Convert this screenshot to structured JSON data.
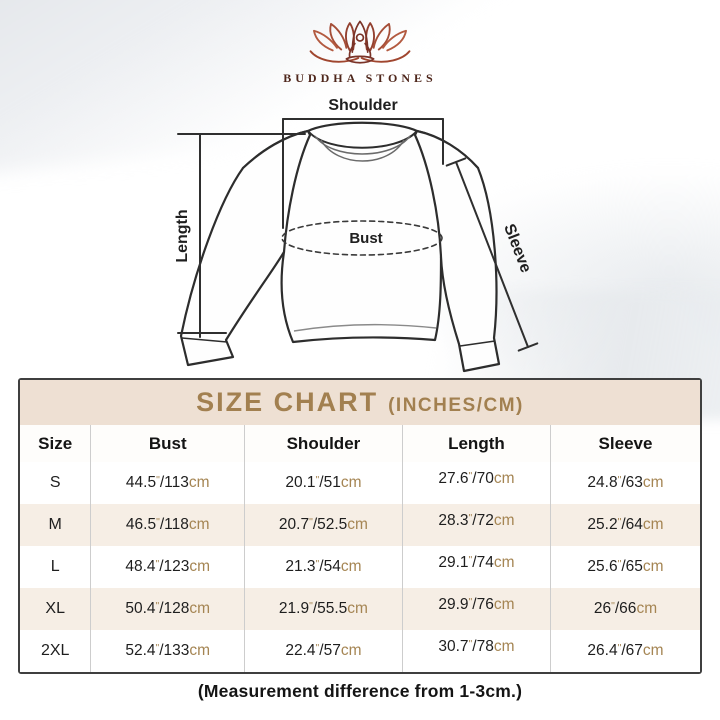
{
  "brand": {
    "name": "BUDDHA STONES"
  },
  "diagram": {
    "labels": {
      "shoulder": "Shoulder",
      "length": "Length",
      "bust": "Bust",
      "sleeve": "Sleeve"
    }
  },
  "size_chart": {
    "title": "SIZE CHART",
    "title_suffix": "(INCHES/CM)",
    "columns": [
      "Size",
      "Bust",
      "Shoulder",
      "Length",
      "Sleeve"
    ],
    "unit_inch_mark": "\"",
    "unit_separator": "/",
    "unit_cm": "cm",
    "rows": [
      {
        "size": "S",
        "bust": {
          "in": "44.5",
          "cm": "113"
        },
        "shoulder": {
          "in": "20.1",
          "cm": "51"
        },
        "length": {
          "in": "27.6",
          "cm": "70"
        },
        "sleeve": {
          "in": "24.8",
          "cm": "63"
        }
      },
      {
        "size": "M",
        "bust": {
          "in": "46.5",
          "cm": "118"
        },
        "shoulder": {
          "in": "20.7",
          "cm": "52.5"
        },
        "length": {
          "in": "28.3",
          "cm": "72"
        },
        "sleeve": {
          "in": "25.2",
          "cm": "64"
        }
      },
      {
        "size": "L",
        "bust": {
          "in": "48.4",
          "cm": "123"
        },
        "shoulder": {
          "in": "21.3",
          "cm": "54"
        },
        "length": {
          "in": "29.1",
          "cm": "74"
        },
        "sleeve": {
          "in": "25.6",
          "cm": "65"
        }
      },
      {
        "size": "XL",
        "bust": {
          "in": "50.4",
          "cm": "128"
        },
        "shoulder": {
          "in": "21.9",
          "cm": "55.5"
        },
        "length": {
          "in": "29.9",
          "cm": "76"
        },
        "sleeve": {
          "in": "26",
          "cm": "66"
        }
      },
      {
        "size": "2XL",
        "bust": {
          "in": "52.4",
          "cm": "133"
        },
        "shoulder": {
          "in": "22.4",
          "cm": "57"
        },
        "length": {
          "in": "30.7",
          "cm": "78"
        },
        "sleeve": {
          "in": "26.4",
          "cm": "67"
        }
      }
    ]
  },
  "footer": {
    "note": "(Measurement difference from 1-3cm.)"
  },
  "colors": {
    "accent_gold": "#a28050",
    "title_bg": "#eee0d3",
    "stripe_bg": "#f6eee5",
    "unit_tan": "#a58553",
    "logo_maroon": "#7a3328",
    "table_border": "#3f3f3f"
  }
}
